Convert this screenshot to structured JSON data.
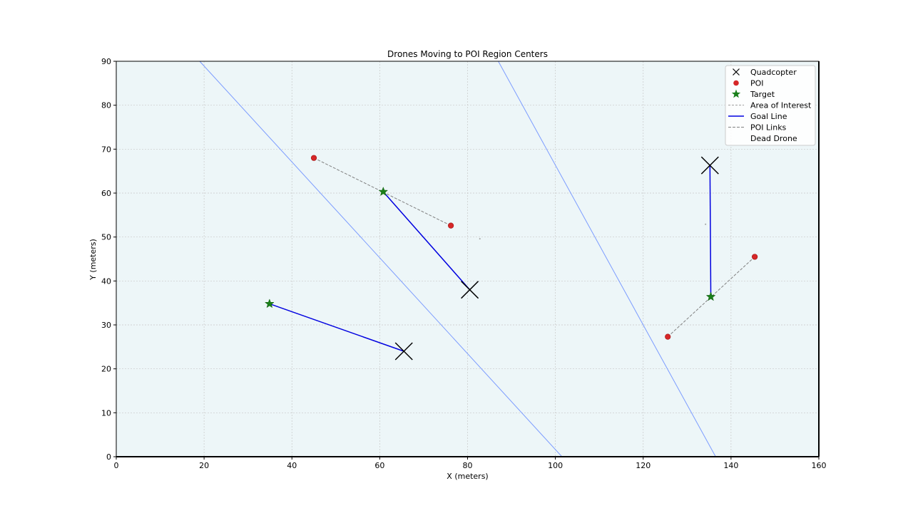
{
  "chart_data": {
    "type": "scatter",
    "title": "Drones Moving to POI Region Centers",
    "xlabel": "X (meters)",
    "ylabel": "Y (meters)",
    "xlim": [
      0,
      160
    ],
    "ylim": [
      0,
      90
    ],
    "xticks": [
      0,
      20,
      40,
      60,
      80,
      100,
      120,
      140,
      160
    ],
    "yticks": [
      0,
      10,
      20,
      30,
      40,
      50,
      60,
      70,
      80,
      90
    ],
    "grid": true,
    "legend_position": "top-right",
    "colors": {
      "background": "#edf6f8",
      "quadcopter": "#000000",
      "poi": "#d62728",
      "target": "#1a7f1a",
      "goal_line": "#0000e0",
      "poi_links": "#808080",
      "boundary": "#7c9cff",
      "grid": "#c8c8c8"
    },
    "legend": [
      {
        "label": "Quadcopter",
        "marker": "x"
      },
      {
        "label": "POI",
        "marker": "dot"
      },
      {
        "label": "Target",
        "marker": "star"
      },
      {
        "label": "Area of Interest",
        "marker": "dash-thin"
      },
      {
        "label": "Goal Line",
        "marker": "line"
      },
      {
        "label": "POI Links",
        "marker": "dash"
      },
      {
        "label": "Dead Drone",
        "marker": "none"
      }
    ],
    "quadcopters": [
      {
        "x": 65.5,
        "y": 24.0
      },
      {
        "x": 80.5,
        "y": 38.0
      },
      {
        "x": 135.2,
        "y": 66.3
      }
    ],
    "pois": [
      {
        "x": 45.0,
        "y": 68.0
      },
      {
        "x": 76.2,
        "y": 52.6
      },
      {
        "x": 125.6,
        "y": 27.3
      },
      {
        "x": 145.4,
        "y": 45.5
      }
    ],
    "targets": [
      {
        "x": 34.9,
        "y": 34.8
      },
      {
        "x": 60.8,
        "y": 60.3
      },
      {
        "x": 135.4,
        "y": 36.4
      }
    ],
    "goal_lines": [
      {
        "from": [
          65.5,
          24.0
        ],
        "to": [
          34.9,
          34.8
        ]
      },
      {
        "from": [
          80.5,
          38.0
        ],
        "to": [
          60.8,
          60.3
        ]
      },
      {
        "from": [
          135.2,
          66.3
        ],
        "to": [
          135.4,
          36.4
        ]
      }
    ],
    "poi_links": [
      {
        "from": [
          45.0,
          68.0
        ],
        "to": [
          76.2,
          52.6
        ]
      },
      {
        "from": [
          125.6,
          27.3
        ],
        "to": [
          145.4,
          45.5
        ]
      }
    ],
    "boundaries": [
      {
        "from": [
          19.0,
          90.0
        ],
        "to": [
          101.5,
          0.0
        ]
      },
      {
        "from": [
          87.0,
          90.0
        ],
        "to": [
          136.5,
          0.0
        ]
      }
    ],
    "small_dots": [
      {
        "x": 82.8,
        "y": 49.6
      },
      {
        "x": 134.2,
        "y": 52.9
      }
    ]
  }
}
